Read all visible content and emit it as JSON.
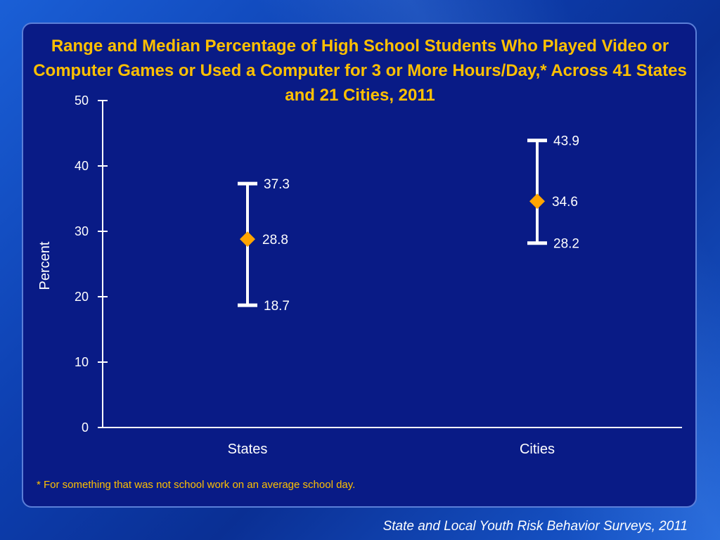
{
  "chart_data": {
    "type": "range",
    "title": "Range and Median Percentage of High School Students Who Played Video or Computer Games or Used a Computer for 3 or More Hours/Day,* Across 41 States and 21 Cities, 2011",
    "ylabel": "Percent",
    "ylim": [
      0,
      50
    ],
    "yticks": [
      0,
      10,
      20,
      30,
      40,
      50
    ],
    "categories": [
      "States",
      "Cities"
    ],
    "series": [
      {
        "category": "States",
        "low": 18.7,
        "median": 28.8,
        "high": 37.3
      },
      {
        "category": "Cities",
        "low": 28.2,
        "median": 34.6,
        "high": 43.9
      }
    ],
    "grid": false,
    "colors": {
      "range_line": "#ffffff",
      "median_marker": "#ffa500",
      "axis": "#ffffff",
      "title": "#ffc000"
    }
  },
  "footnote": "* For something that was not school work on an average school day.",
  "source": "State and Local Youth Risk Behavior Surveys, 2011"
}
